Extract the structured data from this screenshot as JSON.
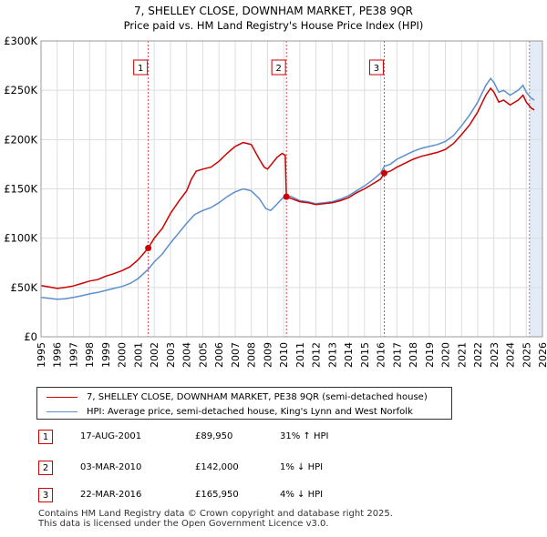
{
  "chart_data": {
    "type": "line",
    "title": "7, SHELLEY CLOSE, DOWNHAM MARKET, PE38 9QR",
    "subtitle": "Price paid vs. HM Land Registry's House Price Index (HPI)",
    "xlim": [
      1995,
      2026
    ],
    "ylim": [
      0,
      300000
    ],
    "x_ticks": [
      1995,
      1996,
      1997,
      1998,
      1999,
      2000,
      2001,
      2002,
      2003,
      2004,
      2005,
      2006,
      2007,
      2008,
      2009,
      2010,
      2011,
      2012,
      2013,
      2014,
      2015,
      2016,
      2017,
      2018,
      2019,
      2020,
      2021,
      2022,
      2023,
      2024,
      2025,
      2026
    ],
    "y_ticks": [
      {
        "value": 0,
        "label": "£0"
      },
      {
        "value": 50000,
        "label": "£50K"
      },
      {
        "value": 100000,
        "label": "£100K"
      },
      {
        "value": 150000,
        "label": "£150K"
      },
      {
        "value": 200000,
        "label": "£200K"
      },
      {
        "value": 250000,
        "label": "£250K"
      },
      {
        "value": 300000,
        "label": "£300K"
      }
    ],
    "colors": {
      "property": "#cc0000",
      "hpi": "#5b8fcf",
      "grid": "#dddddd",
      "shade": "#dce6f5"
    },
    "shade_from": 2025.2,
    "series": [
      {
        "name": "7, SHELLEY CLOSE, DOWNHAM MARKET, PE38 9QR (semi-detached house)",
        "key": "property",
        "points": [
          [
            1995.0,
            52000
          ],
          [
            1995.5,
            50500
          ],
          [
            1996.0,
            49000
          ],
          [
            1996.5,
            50000
          ],
          [
            1997.0,
            51500
          ],
          [
            1997.5,
            54000
          ],
          [
            1998.0,
            56500
          ],
          [
            1998.5,
            58000
          ],
          [
            1999.0,
            61500
          ],
          [
            1999.5,
            64000
          ],
          [
            2000.0,
            67000
          ],
          [
            2000.5,
            71000
          ],
          [
            2001.0,
            78000
          ],
          [
            2001.63,
            89950
          ],
          [
            2002.0,
            100000
          ],
          [
            2002.5,
            110000
          ],
          [
            2003.0,
            125000
          ],
          [
            2003.5,
            137000
          ],
          [
            2004.0,
            148000
          ],
          [
            2004.3,
            160000
          ],
          [
            2004.6,
            168000
          ],
          [
            2005.0,
            170000
          ],
          [
            2005.5,
            172000
          ],
          [
            2006.0,
            178000
          ],
          [
            2006.5,
            186000
          ],
          [
            2007.0,
            193000
          ],
          [
            2007.5,
            197000
          ],
          [
            2008.0,
            195000
          ],
          [
            2008.5,
            180000
          ],
          [
            2008.8,
            172000
          ],
          [
            2009.0,
            170000
          ],
          [
            2009.3,
            176000
          ],
          [
            2009.6,
            182000
          ],
          [
            2009.9,
            186000
          ],
          [
            2010.1,
            184000
          ],
          [
            2010.17,
            142000
          ],
          [
            2010.5,
            140000
          ],
          [
            2011.0,
            137000
          ],
          [
            2011.5,
            136000
          ],
          [
            2012.0,
            134000
          ],
          [
            2012.5,
            135000
          ],
          [
            2013.0,
            136000
          ],
          [
            2013.5,
            138000
          ],
          [
            2014.0,
            141000
          ],
          [
            2014.5,
            146000
          ],
          [
            2015.0,
            150000
          ],
          [
            2015.5,
            155000
          ],
          [
            2016.0,
            160000
          ],
          [
            2016.22,
            165950
          ],
          [
            2016.6,
            168000
          ],
          [
            2017.0,
            172000
          ],
          [
            2017.5,
            176000
          ],
          [
            2018.0,
            180000
          ],
          [
            2018.5,
            183000
          ],
          [
            2019.0,
            185000
          ],
          [
            2019.5,
            187000
          ],
          [
            2020.0,
            190000
          ],
          [
            2020.5,
            196000
          ],
          [
            2021.0,
            205000
          ],
          [
            2021.5,
            215000
          ],
          [
            2022.0,
            228000
          ],
          [
            2022.5,
            245000
          ],
          [
            2022.8,
            252000
          ],
          [
            2023.0,
            248000
          ],
          [
            2023.3,
            238000
          ],
          [
            2023.6,
            240000
          ],
          [
            2024.0,
            235000
          ],
          [
            2024.5,
            240000
          ],
          [
            2024.8,
            245000
          ],
          [
            2025.0,
            238000
          ],
          [
            2025.3,
            232000
          ],
          [
            2025.5,
            230000
          ]
        ]
      },
      {
        "name": "HPI: Average price, semi-detached house, King's Lynn and West Norfolk",
        "key": "hpi",
        "points": [
          [
            1995.0,
            40000
          ],
          [
            1995.5,
            39000
          ],
          [
            1996.0,
            38000
          ],
          [
            1996.5,
            38500
          ],
          [
            1997.0,
            40000
          ],
          [
            1997.5,
            41500
          ],
          [
            1998.0,
            43500
          ],
          [
            1998.5,
            45000
          ],
          [
            1999.0,
            47000
          ],
          [
            1999.5,
            49000
          ],
          [
            2000.0,
            51000
          ],
          [
            2000.5,
            54000
          ],
          [
            2001.0,
            59000
          ],
          [
            2001.63,
            68500
          ],
          [
            2002.0,
            76000
          ],
          [
            2002.5,
            84000
          ],
          [
            2003.0,
            95000
          ],
          [
            2003.5,
            105000
          ],
          [
            2004.0,
            115000
          ],
          [
            2004.5,
            124000
          ],
          [
            2005.0,
            128000
          ],
          [
            2005.5,
            131000
          ],
          [
            2006.0,
            136000
          ],
          [
            2006.5,
            142000
          ],
          [
            2007.0,
            147000
          ],
          [
            2007.5,
            150000
          ],
          [
            2008.0,
            148000
          ],
          [
            2008.5,
            140000
          ],
          [
            2008.9,
            130000
          ],
          [
            2009.2,
            128000
          ],
          [
            2009.5,
            133000
          ],
          [
            2009.9,
            140000
          ],
          [
            2010.17,
            143500
          ],
          [
            2010.5,
            142000
          ],
          [
            2011.0,
            138000
          ],
          [
            2011.5,
            137000
          ],
          [
            2012.0,
            135000
          ],
          [
            2012.5,
            136000
          ],
          [
            2013.0,
            137000
          ],
          [
            2013.5,
            139500
          ],
          [
            2014.0,
            143000
          ],
          [
            2014.5,
            148000
          ],
          [
            2015.0,
            153000
          ],
          [
            2015.5,
            159000
          ],
          [
            2016.0,
            166000
          ],
          [
            2016.22,
            172800
          ],
          [
            2016.6,
            175000
          ],
          [
            2017.0,
            180000
          ],
          [
            2017.5,
            184000
          ],
          [
            2018.0,
            188000
          ],
          [
            2018.5,
            191000
          ],
          [
            2019.0,
            193000
          ],
          [
            2019.5,
            195000
          ],
          [
            2020.0,
            198000
          ],
          [
            2020.5,
            204000
          ],
          [
            2021.0,
            214000
          ],
          [
            2021.5,
            225000
          ],
          [
            2022.0,
            238000
          ],
          [
            2022.5,
            255000
          ],
          [
            2022.8,
            262000
          ],
          [
            2023.0,
            258000
          ],
          [
            2023.3,
            248000
          ],
          [
            2023.6,
            250000
          ],
          [
            2024.0,
            245000
          ],
          [
            2024.5,
            250000
          ],
          [
            2024.8,
            255000
          ],
          [
            2025.0,
            248000
          ],
          [
            2025.3,
            242000
          ],
          [
            2025.5,
            240000
          ]
        ]
      }
    ],
    "sales": [
      {
        "n": "1",
        "x": 2001.63,
        "y": 89950
      },
      {
        "n": "2",
        "x": 2010.17,
        "y": 142000
      },
      {
        "n": "3",
        "x": 2016.22,
        "y": 165950
      }
    ]
  },
  "legend": {
    "property": "7, SHELLEY CLOSE, DOWNHAM MARKET, PE38 9QR (semi-detached house)",
    "hpi": "HPI: Average price, semi-detached house, King's Lynn and West Norfolk"
  },
  "sales_table": [
    {
      "n": "1",
      "date": "17-AUG-2001",
      "price": "£89,950",
      "hpi": "31% ↑ HPI"
    },
    {
      "n": "2",
      "date": "03-MAR-2010",
      "price": "£142,000",
      "hpi": "1% ↓ HPI"
    },
    {
      "n": "3",
      "date": "22-MAR-2016",
      "price": "£165,950",
      "hpi": "4% ↓ HPI"
    }
  ],
  "footer": {
    "line1": "Contains HM Land Registry data © Crown copyright and database right 2025.",
    "line2": "This data is licensed under the Open Government Licence v3.0."
  }
}
